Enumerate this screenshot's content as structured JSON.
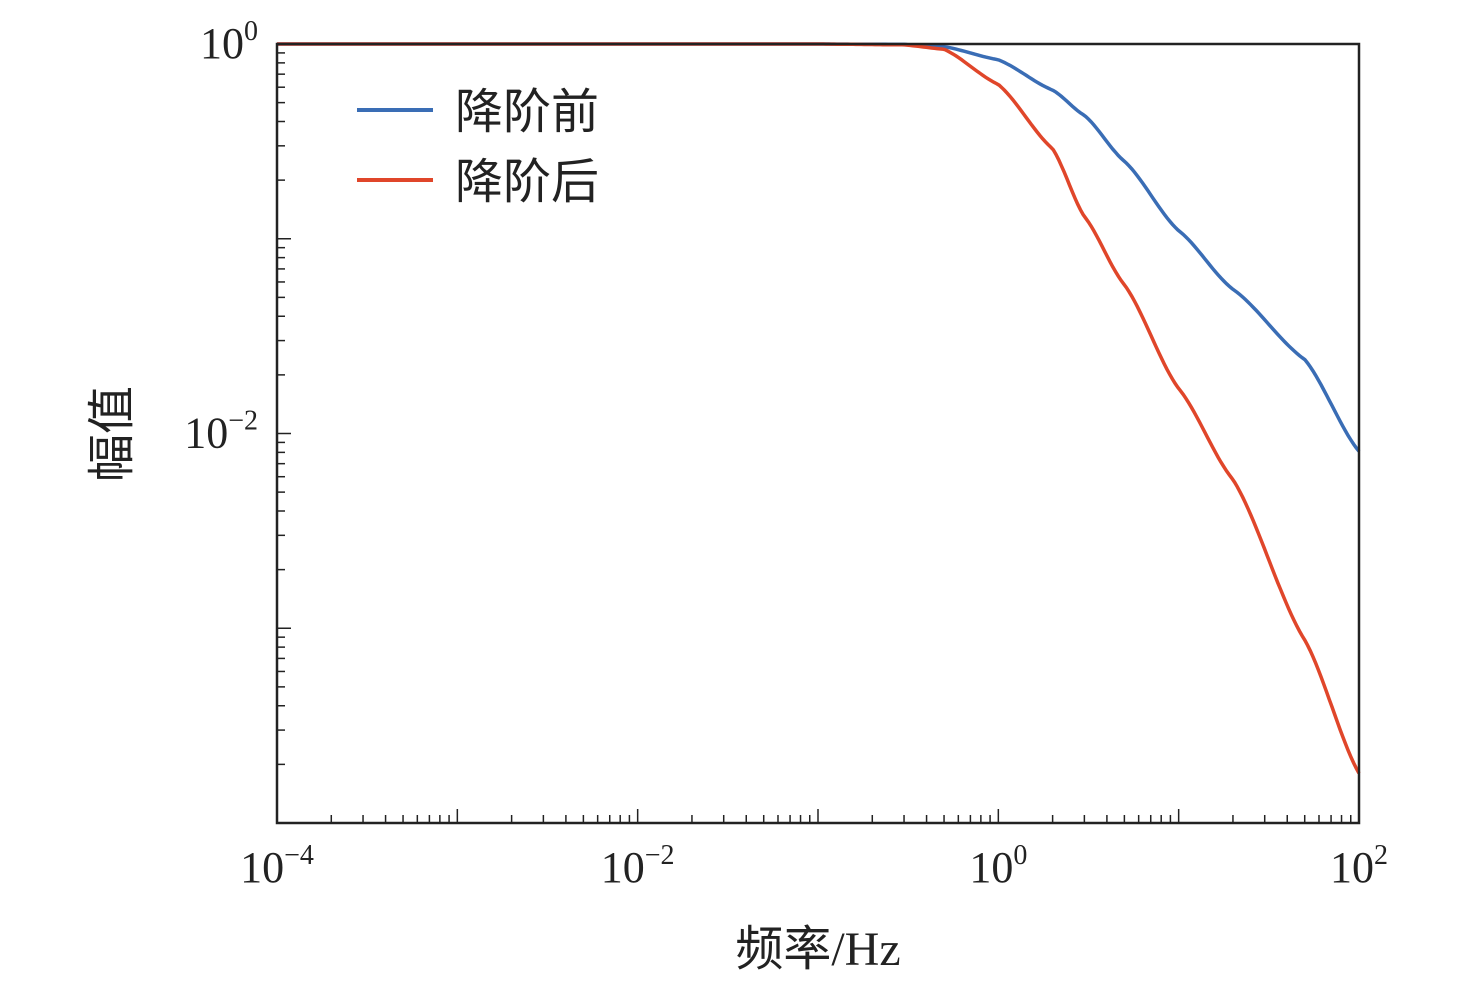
{
  "chart_data": {
    "type": "line",
    "title": "",
    "xlabel": "频率/Hz",
    "ylabel": "幅值",
    "xscale": "log",
    "yscale": "log",
    "xlim": [
      0.0001,
      100
    ],
    "ylim": [
      0.0001,
      1
    ],
    "x_ticks": [
      {
        "base": "10",
        "exp": "−4"
      },
      {
        "base": "10",
        "exp": "−2"
      },
      {
        "base": "10",
        "exp": "0"
      },
      {
        "base": "10",
        "exp": "2"
      }
    ],
    "y_ticks": [
      {
        "base": "10",
        "exp": "−2"
      },
      {
        "base": "10",
        "exp": "0"
      }
    ],
    "grid": false,
    "legend_position": "top-left",
    "x": [
      0.0001,
      0.001,
      0.01,
      0.1,
      0.3,
      0.5,
      1,
      2,
      3,
      5,
      10,
      20,
      50,
      100
    ],
    "series": [
      {
        "name": "降阶前",
        "color": "#3a6db5",
        "values": [
          1,
          1,
          1,
          1,
          0.995,
          0.97,
          0.83,
          0.58,
          0.43,
          0.25,
          0.11,
          0.055,
          0.024,
          0.0081
        ]
      },
      {
        "name": "降阶后",
        "color": "#e0462a",
        "values": [
          1,
          1,
          1,
          1,
          0.99,
          0.94,
          0.62,
          0.29,
          0.13,
          0.058,
          0.017,
          0.0058,
          0.00087,
          0.00018
        ]
      }
    ]
  }
}
